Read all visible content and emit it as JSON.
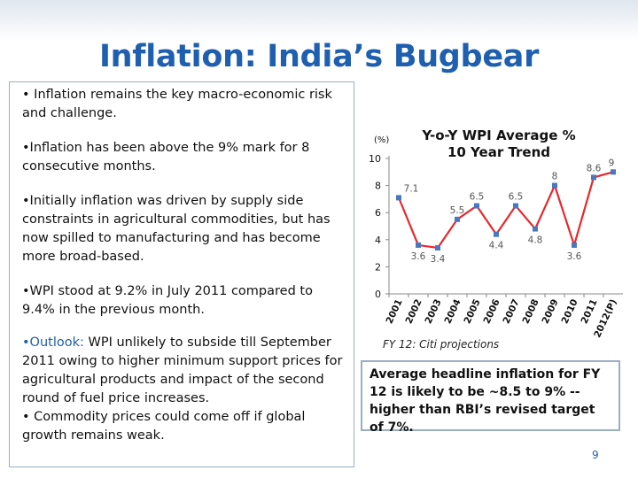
{
  "slide": {
    "title": "Inflation: India’s Bugbear",
    "bullets": [
      "• Inflation remains the key macro-economic risk and challenge.",
      "•Inflation has been above the 9% mark for 8 consecutive months.",
      "•Initially inflation was driven by supply side constraints in agricultural commodities, but has now spilled to manufacturing and has become more broad-based.",
      "•WPI stood at 9.2% in July 2011 compared to 9.4% in the previous month."
    ],
    "outlook": {
      "label": "•Outlook:",
      "text": " WPI unlikely to subside till September 2011 owing to higher minimum support prices for agricultural products and impact of the second round of  fuel price increases.",
      "extra": "• Commodity prices could come off if global growth remains weak."
    },
    "caption": "FY 12: Citi projections",
    "callout": "Average headline inflation for FY 12 is likely to be ~8.5 to 9% -- higher than RBI’s revised  target of 7%.",
    "page_number": "9"
  },
  "chart_data": {
    "type": "line",
    "title": "Y-o-Y WPI Average %\n10 Year Trend",
    "title_lines": [
      "Y-o-Y WPI Average %",
      "10 Year Trend"
    ],
    "ylabel": "(%)",
    "categories": [
      "2001",
      "2002",
      "2003",
      "2004",
      "2005",
      "2006",
      "2007",
      "2008",
      "2009",
      "2010",
      "2011",
      "2012(P)"
    ],
    "values": [
      7.1,
      3.6,
      3.4,
      5.5,
      6.5,
      4.4,
      6.5,
      4.8,
      8,
      3.6,
      8.6,
      9
    ],
    "data_labels": [
      "7.1",
      "3.6",
      "3.4",
      "5.5",
      "6.5",
      "4.4",
      "6.5",
      "4.8",
      "8",
      "3.6",
      "8.6",
      "9"
    ],
    "ylim": [
      0,
      10
    ],
    "yticks": [
      "0",
      "2",
      "4",
      "6",
      "8",
      "10"
    ],
    "line_color": "#e8282c",
    "marker_color": "#4a78c0",
    "grid": false,
    "legend": "none"
  }
}
